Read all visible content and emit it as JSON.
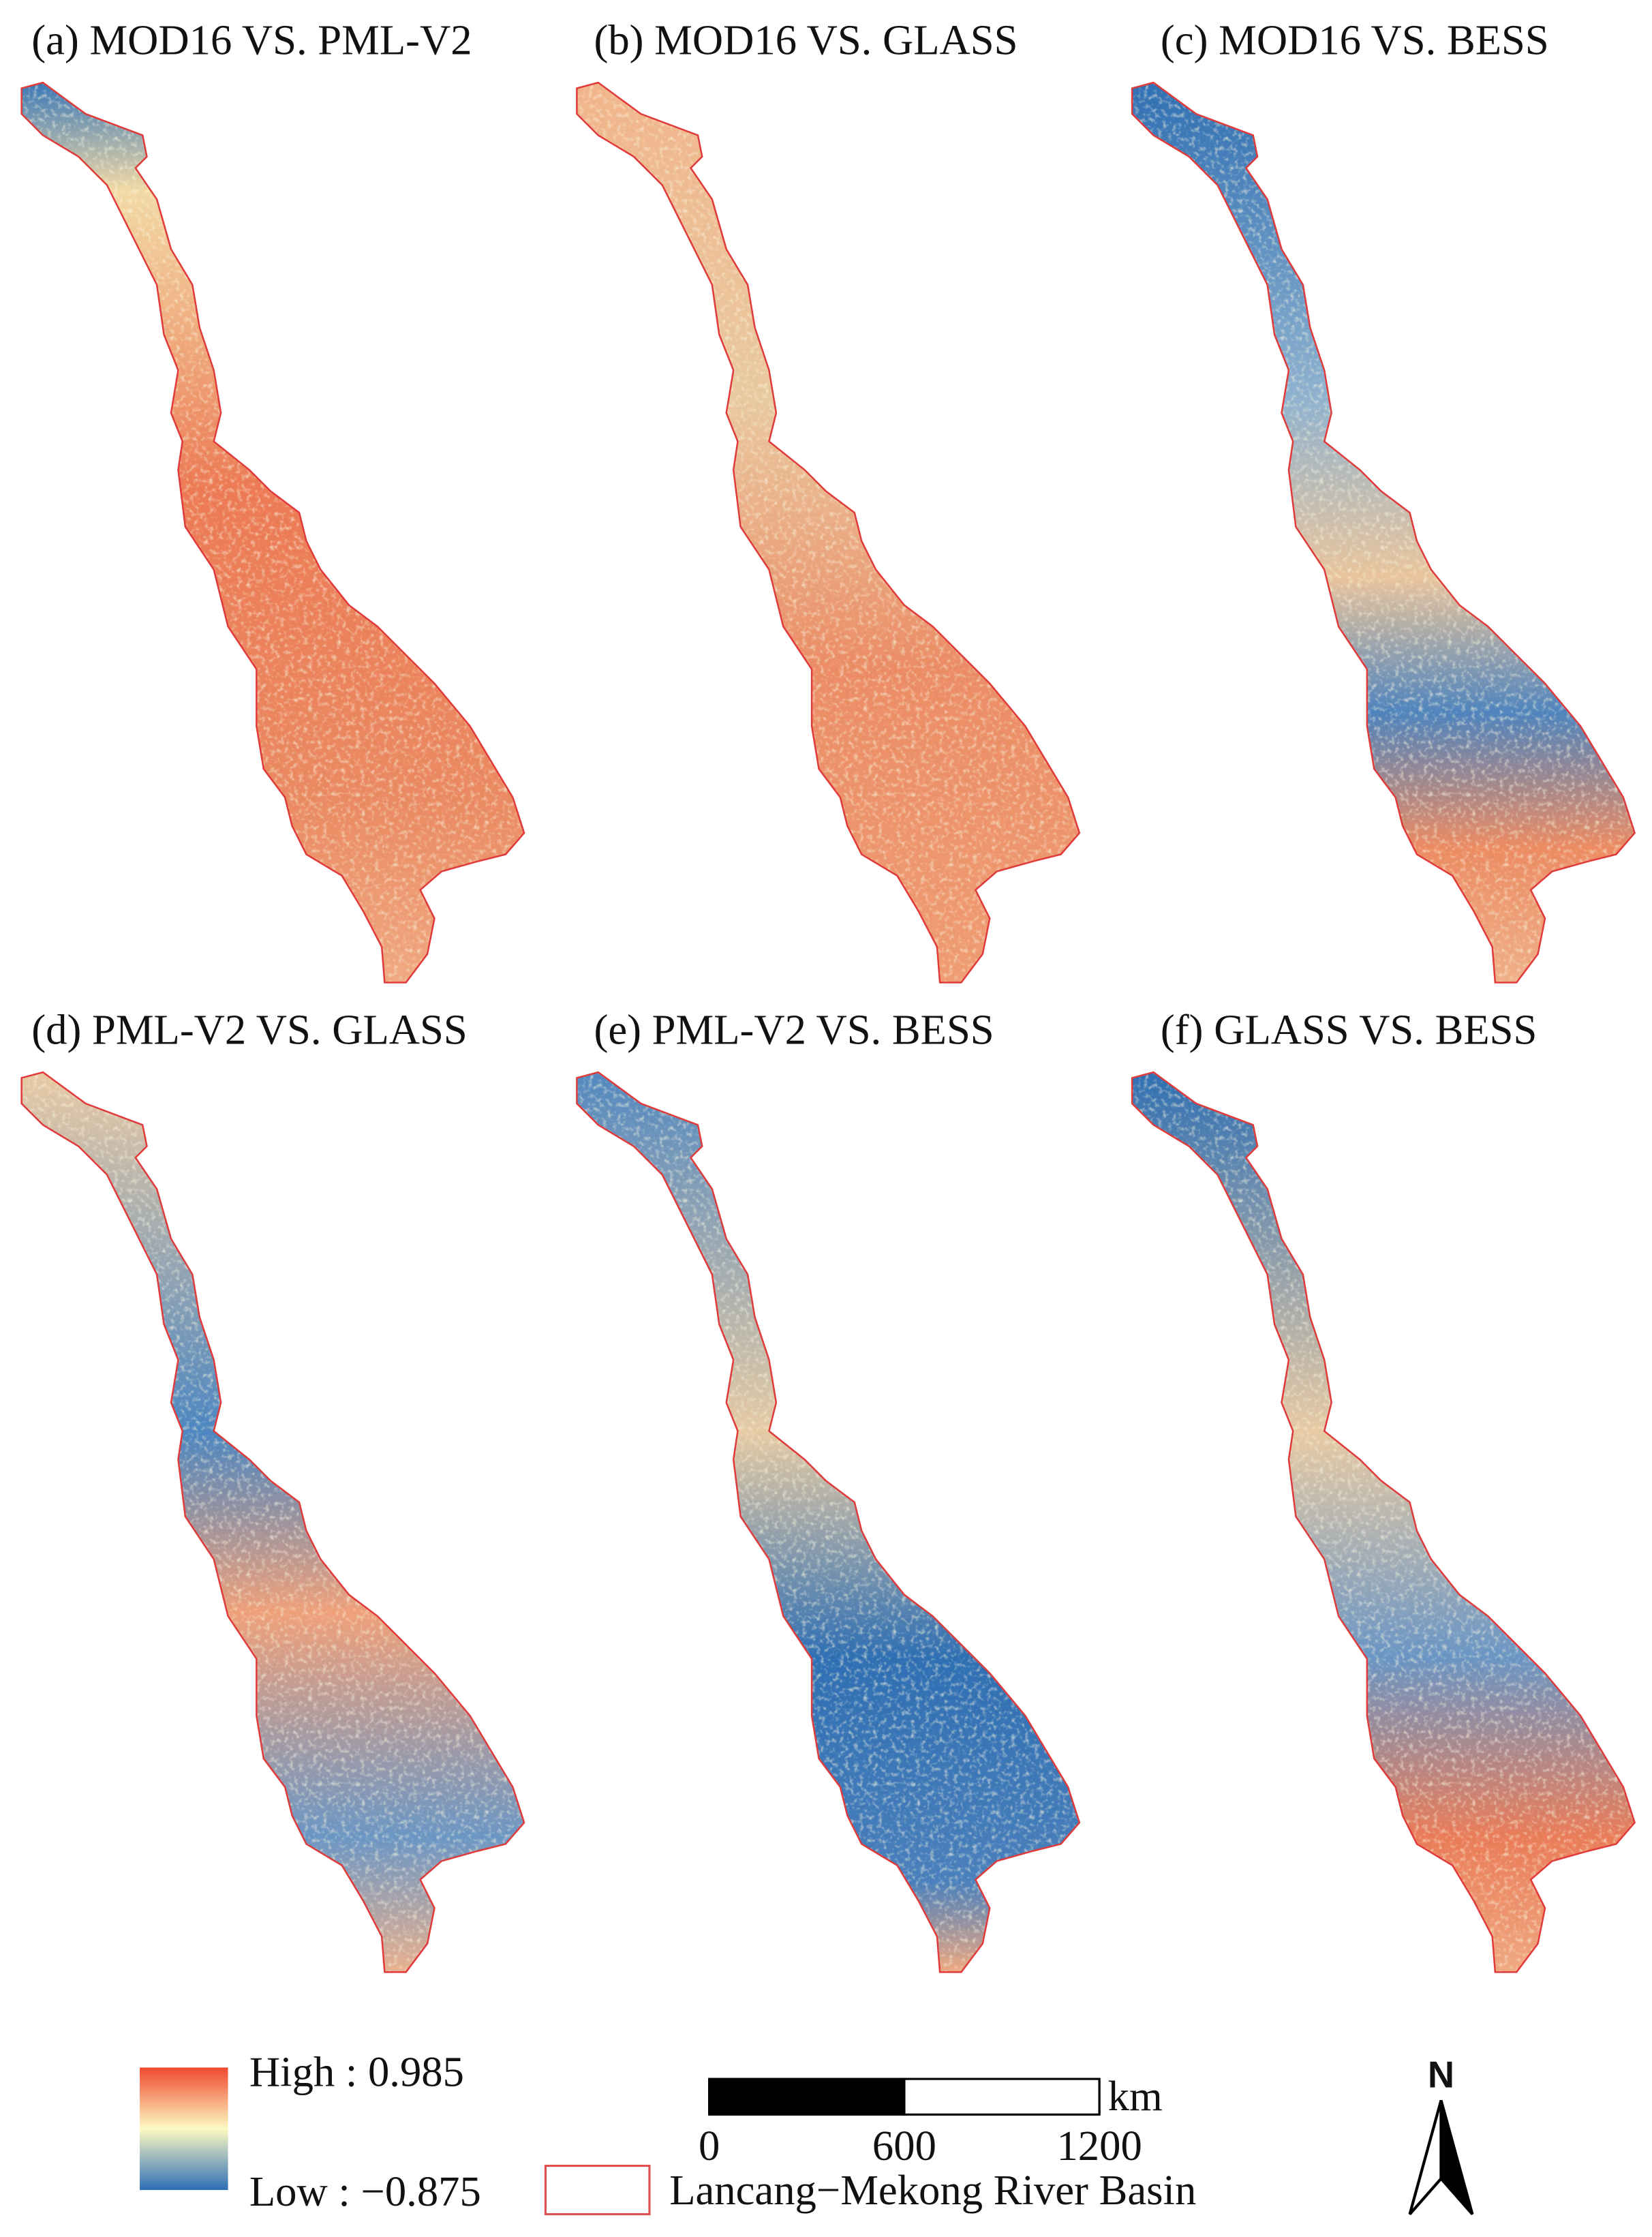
{
  "panels": [
    {
      "label": "(a) MOD16 VS. PML-V2"
    },
    {
      "label": "(b) MOD16 VS. GLASS"
    },
    {
      "label": "(c) MOD16 VS. BESS"
    },
    {
      "label": "(d) PML-V2 VS. GLASS"
    },
    {
      "label": "(e) PML-V2 VS. BESS"
    },
    {
      "label": "(f) GLASS VS. BESS"
    }
  ],
  "legend": {
    "high_label": "High : 0.985",
    "low_label": "Low : −0.875"
  },
  "scale_bar": {
    "unit": "km",
    "ticks": [
      0,
      600,
      1200
    ]
  },
  "basin_legend": "Lancang−Mekong River Basin",
  "north": "N"
}
